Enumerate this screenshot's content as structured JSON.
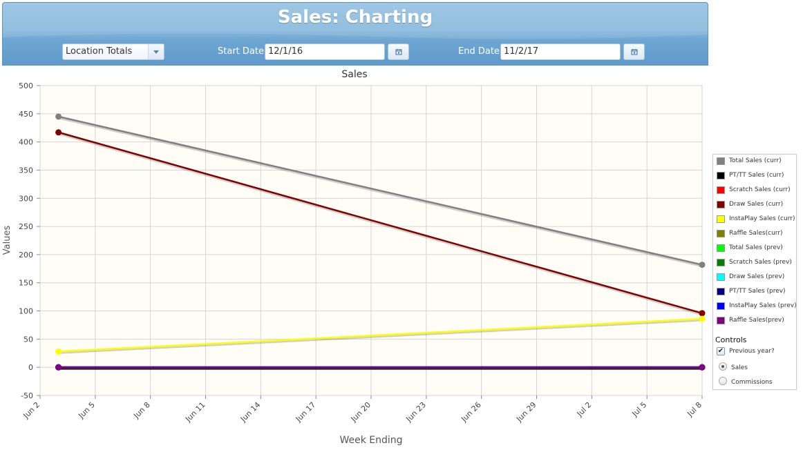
{
  "header": {
    "title": "Sales: Charting",
    "location_select": "Location Totals",
    "start_date_label": "Start Date",
    "start_date_value": "12/1/16",
    "end_date_label": "End Date",
    "end_date_value": "11/2/17"
  },
  "chart_data": {
    "type": "line",
    "title": "Sales",
    "xlabel": "Week Ending",
    "ylabel": "Values",
    "ylim": [
      -50,
      500
    ],
    "yticks": [
      -50,
      0,
      50,
      100,
      150,
      200,
      250,
      300,
      350,
      400,
      450,
      500
    ],
    "xticks": [
      "Jun 2",
      "Jun 5",
      "Jun 8",
      "Jun 11",
      "Jun 14",
      "Jun 17",
      "Jun 20",
      "Jun 23",
      "Jun 26",
      "Jun 29",
      "Jul 2",
      "Jul 5",
      "Jul 8"
    ],
    "grid": true,
    "legend_position": "right",
    "x_points": [
      "Jun 3",
      "Jul 8"
    ],
    "series": [
      {
        "name": "Total Sales (curr)",
        "color": "#808080",
        "values": [
          445,
          182
        ]
      },
      {
        "name": "PT/TT Sales (curr)",
        "color": "#000000",
        "values": [
          0,
          0
        ]
      },
      {
        "name": "Scratch Sales (curr)",
        "color": "#ff0000",
        "values": [
          0,
          0
        ]
      },
      {
        "name": "Draw Sales (curr)",
        "color": "#800000",
        "values": [
          417,
          96
        ]
      },
      {
        "name": "InstaPlay Sales (curr)",
        "color": "#ffff00",
        "values": [
          28,
          86
        ]
      },
      {
        "name": "Raffle Sales(curr)",
        "color": "#808000",
        "values": [
          0,
          0
        ]
      },
      {
        "name": "Total Sales (prev)",
        "color": "#00ff00",
        "values": [
          0,
          0
        ]
      },
      {
        "name": "Scratch Sales (prev)",
        "color": "#008000",
        "values": [
          0,
          0
        ]
      },
      {
        "name": "Draw Sales (prev)",
        "color": "#00ffff",
        "values": [
          0,
          0
        ]
      },
      {
        "name": "PT/TT Sales (prev)",
        "color": "#000080",
        "values": [
          0,
          0
        ]
      },
      {
        "name": "InstaPlay Sales (prev)",
        "color": "#0000ff",
        "values": [
          0,
          0
        ]
      },
      {
        "name": "Raffle Sales(prev)",
        "color": "#800080",
        "values": [
          0,
          0
        ]
      }
    ]
  },
  "controls": {
    "title": "Controls",
    "previous_year_label": "Previous year?",
    "previous_year_checked": true,
    "radio_options": [
      "Sales",
      "Commissions"
    ],
    "selected": "Sales"
  }
}
